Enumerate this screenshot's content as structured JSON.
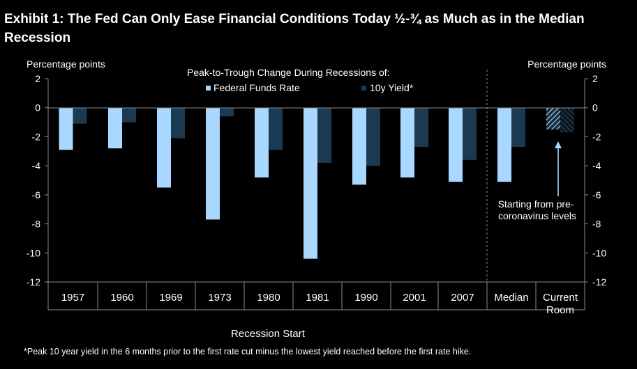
{
  "title": "Exhibit 1: The Fed Can Only Ease Financial Conditions Today ½-¾ as Much as in the Median Recession",
  "footnote": "*Peak  10 year yield  in the 6 months  prior to the first rate cut minus  the lowest yield reached before the first rate hike.",
  "colors": {
    "background": "#000000",
    "fed_funds": "#a8d8ff",
    "ten_year": "#1b3a52"
  },
  "chart_data": {
    "type": "bar",
    "title": "Peak-to-Trough  Change  During Recessions of:",
    "xlabel": "Recession Start",
    "ylabel_left": "Percentage  points",
    "ylabel_right": "Percentage  points",
    "ylim": [
      -12,
      2
    ],
    "yticks": [
      2,
      0,
      -2,
      -4,
      -6,
      -8,
      -10,
      -12
    ],
    "categories": [
      "1957",
      "1960",
      "1969",
      "1973",
      "1980",
      "1981",
      "1990",
      "2001",
      "2007",
      "Median",
      "Current Room"
    ],
    "series": [
      {
        "name": "Federal Funds Rate",
        "values": [
          -2.9,
          -2.8,
          -5.5,
          -7.7,
          -4.8,
          -10.4,
          -5.3,
          -4.8,
          -5.1,
          -5.1,
          -1.5
        ]
      },
      {
        "name": "10y Yield*",
        "values": [
          -1.1,
          -1.0,
          -2.1,
          -0.6,
          -2.9,
          -3.8,
          -4.0,
          -2.7,
          -3.6,
          -2.7,
          -1.7
        ]
      }
    ],
    "annotation": "Starting from pre-coronavirus levels",
    "annotation_lines": [
      "Starting from pre-",
      "coronavirus levels"
    ]
  }
}
